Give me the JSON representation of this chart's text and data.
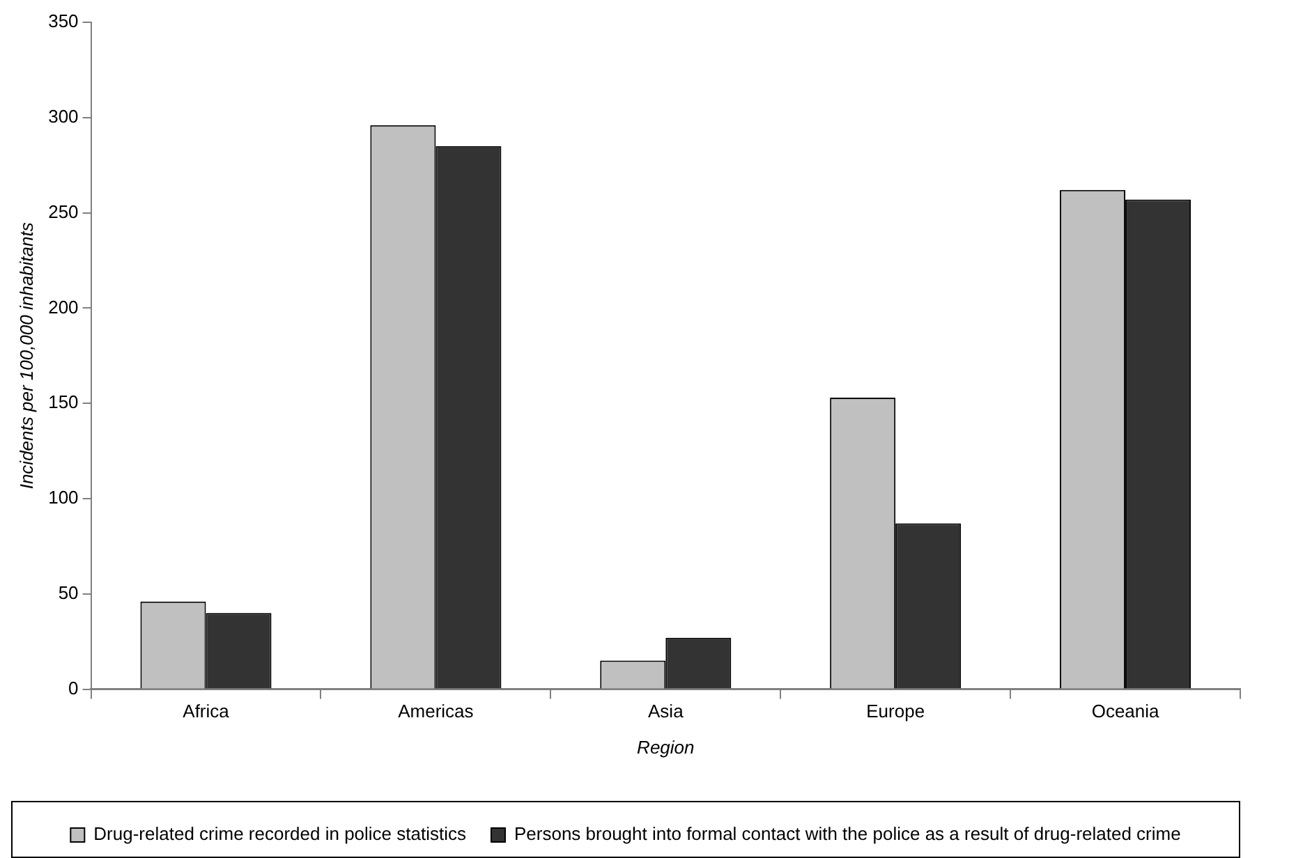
{
  "chart_data": {
    "type": "bar",
    "xlabel": "Region",
    "ylabel": "Incidents per 100,000 inhabitants",
    "categories": [
      "Africa",
      "Americas",
      "Asia",
      "Europe",
      "Oceania"
    ],
    "series": [
      {
        "name": "Drug-related crime recorded in police statistics",
        "color": "#c0c0c0",
        "values": [
          46,
          296,
          15,
          153,
          262
        ]
      },
      {
        "name": "Persons brought into formal contact with the police as a result of drug-related crime",
        "color": "#333333",
        "values": [
          40,
          285,
          27,
          87,
          257
        ]
      }
    ],
    "ylim": [
      0,
      350
    ],
    "yticks": [
      0,
      50,
      100,
      150,
      200,
      250,
      300,
      350
    ],
    "legend": "bottom"
  }
}
